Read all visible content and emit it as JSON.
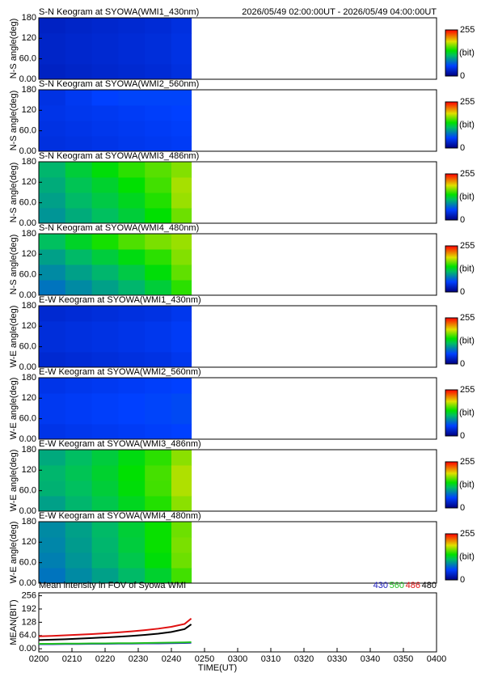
{
  "chart_data": [
    {
      "type": "heatmap",
      "title": "S-N Keogram at SYOWA(WMI1_430nm)",
      "subtitle": "2026/05/49 02:00:00UT - 2026/05/49 04:00:00UT",
      "ylabel": "N-S angle(deg)",
      "xlim": [
        120,
        240
      ],
      "ylim": [
        0,
        180
      ],
      "yticks": [
        {
          "value": 0,
          "label": "0.00"
        },
        {
          "value": 60,
          "label": "60.0"
        },
        120,
        180
      ],
      "x_edges": [
        120,
        128,
        136,
        144,
        152,
        160,
        166
      ],
      "y_edges": [
        0,
        45,
        90,
        135,
        180
      ],
      "values": [
        [
          30,
          32,
          34,
          36,
          38,
          42
        ],
        [
          32,
          34,
          36,
          38,
          40,
          44
        ],
        [
          32,
          34,
          36,
          38,
          40,
          44
        ],
        [
          30,
          32,
          34,
          36,
          38,
          42
        ]
      ],
      "zlim": [
        0,
        255
      ],
      "zticks": [
        0,
        255
      ],
      "colorbar_label": "(bit)"
    },
    {
      "type": "heatmap",
      "title": "S-N Keogram at SYOWA(WMI2_560nm)",
      "ylabel": "N-S angle(deg)",
      "xlim": [
        120,
        240
      ],
      "ylim": [
        0,
        180
      ],
      "yticks": [
        {
          "value": 0,
          "label": "0.00"
        },
        {
          "value": 60,
          "label": "60.0"
        },
        120,
        180
      ],
      "x_edges": [
        120,
        128,
        136,
        144,
        152,
        160,
        166
      ],
      "y_edges": [
        0,
        45,
        90,
        135,
        180
      ],
      "values": [
        [
          42,
          44,
          46,
          48,
          50,
          52
        ],
        [
          44,
          46,
          48,
          50,
          52,
          54
        ],
        [
          46,
          48,
          50,
          52,
          54,
          56
        ],
        [
          44,
          50,
          56,
          58,
          58,
          58
        ]
      ],
      "zlim": [
        0,
        255
      ],
      "zticks": [
        0,
        255
      ],
      "colorbar_label": "(bit)"
    },
    {
      "type": "heatmap",
      "title": "S-N Keogram at SYOWA(WMI3_486nm)",
      "ylabel": "N-S angle(deg)",
      "xlim": [
        120,
        240
      ],
      "ylim": [
        0,
        180
      ],
      "yticks": [
        {
          "value": 0,
          "label": "0.00"
        },
        {
          "value": 60,
          "label": "60.0"
        },
        120,
        180
      ],
      "x_edges": [
        120,
        128,
        136,
        144,
        152,
        160,
        166
      ],
      "y_edges": [
        0,
        45,
        90,
        135,
        180
      ],
      "values": [
        [
          95,
          105,
          115,
          125,
          140,
          165
        ],
        [
          100,
          112,
          122,
          132,
          148,
          175
        ],
        [
          105,
          118,
          128,
          140,
          155,
          178
        ],
        [
          110,
          125,
          138,
          150,
          160,
          170
        ]
      ],
      "zlim": [
        0,
        255
      ],
      "zticks": [
        0,
        255
      ],
      "colorbar_label": "(bit)"
    },
    {
      "type": "heatmap",
      "title": "S-N Keogram at SYOWA(WMI4_480nm)",
      "ylabel": "N-S angle(deg)",
      "xlim": [
        120,
        240
      ],
      "ylim": [
        0,
        180
      ],
      "yticks": [
        {
          "value": 0,
          "label": "0.00"
        },
        {
          "value": 60,
          "label": "60.0"
        },
        120,
        180
      ],
      "x_edges": [
        120,
        128,
        136,
        144,
        152,
        160,
        166
      ],
      "y_edges": [
        0,
        45,
        90,
        135,
        180
      ],
      "values": [
        [
          80,
          90,
          100,
          110,
          125,
          150
        ],
        [
          90,
          100,
          110,
          122,
          138,
          162
        ],
        [
          100,
          112,
          124,
          136,
          150,
          170
        ],
        [
          115,
          130,
          145,
          158,
          168,
          175
        ]
      ],
      "zlim": [
        0,
        255
      ],
      "zticks": [
        0,
        255
      ],
      "colorbar_label": "(bit)"
    },
    {
      "type": "heatmap",
      "title": "E-W Keogram at SYOWA(WMI1_430nm)",
      "ylabel": "W-E angle(deg)",
      "xlim": [
        120,
        240
      ],
      "ylim": [
        0,
        180
      ],
      "yticks": [
        {
          "value": 0,
          "label": "0.00"
        },
        {
          "value": 60,
          "label": "60.0"
        },
        120,
        180
      ],
      "x_edges": [
        120,
        128,
        136,
        144,
        152,
        160,
        166
      ],
      "y_edges": [
        0,
        45,
        90,
        135,
        180
      ],
      "values": [
        [
          36,
          38,
          40,
          42,
          44,
          48
        ],
        [
          40,
          42,
          44,
          46,
          48,
          52
        ],
        [
          40,
          42,
          44,
          46,
          48,
          52
        ],
        [
          36,
          38,
          40,
          42,
          44,
          48
        ]
      ],
      "zlim": [
        0,
        255
      ],
      "zticks": [
        0,
        255
      ],
      "colorbar_label": "(bit)"
    },
    {
      "type": "heatmap",
      "title": "E-W Keogram at SYOWA(WMI2_560nm)",
      "ylabel": "W-E angle(deg)",
      "xlim": [
        120,
        240
      ],
      "ylim": [
        0,
        180
      ],
      "yticks": [
        {
          "value": 0,
          "label": "0.00"
        },
        {
          "value": 60,
          "label": "60.0"
        },
        120,
        180
      ],
      "x_edges": [
        120,
        128,
        136,
        144,
        152,
        160,
        166
      ],
      "y_edges": [
        0,
        45,
        90,
        135,
        180
      ],
      "values": [
        [
          46,
          48,
          50,
          52,
          54,
          56
        ],
        [
          50,
          52,
          54,
          56,
          58,
          60
        ],
        [
          50,
          52,
          54,
          56,
          58,
          60
        ],
        [
          46,
          48,
          50,
          52,
          54,
          56
        ]
      ],
      "zlim": [
        0,
        255
      ],
      "zticks": [
        0,
        255
      ],
      "colorbar_label": "(bit)"
    },
    {
      "type": "heatmap",
      "title": "E-W Keogram at SYOWA(WMI3_486nm)",
      "ylabel": "W-E angle(deg)",
      "xlim": [
        120,
        240
      ],
      "ylim": [
        0,
        180
      ],
      "yticks": [
        {
          "value": 0,
          "label": "0.00"
        },
        {
          "value": 60,
          "label": "60.0"
        },
        120,
        180
      ],
      "x_edges": [
        120,
        128,
        136,
        144,
        152,
        160,
        166
      ],
      "y_edges": [
        0,
        45,
        90,
        135,
        180
      ],
      "values": [
        [
          100,
          110,
          120,
          132,
          148,
          172
        ],
        [
          108,
          115,
          125,
          138,
          155,
          180
        ],
        [
          110,
          118,
          128,
          140,
          156,
          180
        ],
        [
          104,
          114,
          124,
          136,
          150,
          172
        ]
      ],
      "zlim": [
        0,
        255
      ],
      "zticks": [
        0,
        255
      ],
      "colorbar_label": "(bit)"
    },
    {
      "type": "heatmap",
      "title": "E-W Keogram at SYOWA(WMI4_480nm)",
      "ylabel": "W-E angle(deg)",
      "xlim": [
        120,
        240
      ],
      "ylim": [
        0,
        180
      ],
      "yticks": [
        {
          "value": 0,
          "label": "0.00"
        },
        {
          "value": 60,
          "label": "60.0"
        },
        120,
        180
      ],
      "x_edges": [
        120,
        128,
        136,
        144,
        152,
        160,
        166
      ],
      "y_edges": [
        0,
        45,
        90,
        135,
        180
      ],
      "values": [
        [
          80,
          90,
          100,
          112,
          128,
          155
        ],
        [
          85,
          95,
          108,
          120,
          138,
          165
        ],
        [
          88,
          98,
          110,
          124,
          142,
          168
        ],
        [
          90,
          100,
          112,
          126,
          142,
          165
        ]
      ],
      "zlim": [
        0,
        255
      ],
      "zticks": [
        0,
        255
      ],
      "colorbar_label": "(bit)"
    },
    {
      "type": "line",
      "title": "Mean intensity in FOV of Syowa WMI",
      "xlabel": "TIME(UT)",
      "ylabel": "MEAN(BIT)",
      "xlim": [
        120,
        240
      ],
      "ylim": [
        -15,
        270
      ],
      "xticks": [
        {
          "value": 120,
          "label": "0200"
        },
        {
          "value": 130,
          "label": "0210"
        },
        {
          "value": 140,
          "label": "0220"
        },
        {
          "value": 150,
          "label": "0230"
        },
        {
          "value": 160,
          "label": "0240"
        },
        {
          "value": 170,
          "label": "0250"
        },
        {
          "value": 180,
          "label": "0300"
        },
        {
          "value": 190,
          "label": "0310"
        },
        {
          "value": 200,
          "label": "0320"
        },
        {
          "value": 210,
          "label": "0330"
        },
        {
          "value": 220,
          "label": "0340"
        },
        {
          "value": 230,
          "label": "0350"
        },
        {
          "value": 240,
          "label": "0400"
        }
      ],
      "yticks": [
        {
          "value": 0,
          "label": "0.00"
        },
        {
          "value": 64,
          "label": "64.0"
        },
        128,
        192,
        256
      ],
      "x": [
        120,
        124,
        128,
        132,
        136,
        140,
        144,
        148,
        152,
        156,
        160,
        164,
        166
      ],
      "series": [
        {
          "name": "430",
          "color": "#2020c0",
          "values": [
            22,
            22,
            23,
            23,
            24,
            24,
            25,
            25,
            26,
            26,
            27,
            28,
            29
          ]
        },
        {
          "name": "560",
          "color": "#20c020",
          "values": [
            24,
            24,
            25,
            25,
            26,
            26,
            27,
            27,
            28,
            29,
            30,
            31,
            32
          ]
        },
        {
          "name": "486",
          "color": "#e01010",
          "values": [
            60,
            62,
            65,
            68,
            71,
            75,
            79,
            84,
            90,
            97,
            106,
            120,
            146
          ]
        },
        {
          "name": "480",
          "color": "#000000",
          "values": [
            42,
            44,
            46,
            49,
            52,
            55,
            58,
            62,
            67,
            73,
            81,
            95,
            118
          ]
        }
      ]
    }
  ]
}
